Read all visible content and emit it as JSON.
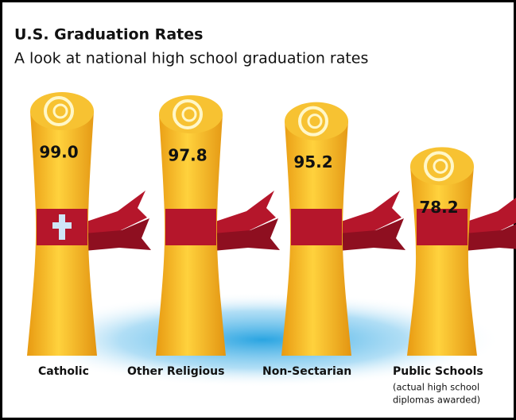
{
  "chart_data": {
    "type": "pictograph",
    "title": "U.S. Graduation Rates",
    "subtitle": "A look at national high school graduation rates",
    "categories": [
      "Catholic",
      "Other Religious",
      "Non-Sectarian",
      "Public Schools"
    ],
    "values": [
      99.0,
      97.8,
      95.2,
      78.2
    ],
    "value_labels": [
      "99.0",
      "97.8",
      "95.2",
      "78.2"
    ],
    "annotations": [
      "(actual high school",
      "diplomas awarded)"
    ],
    "color": "#f2b727",
    "ribbon_color": "#b5162b"
  }
}
